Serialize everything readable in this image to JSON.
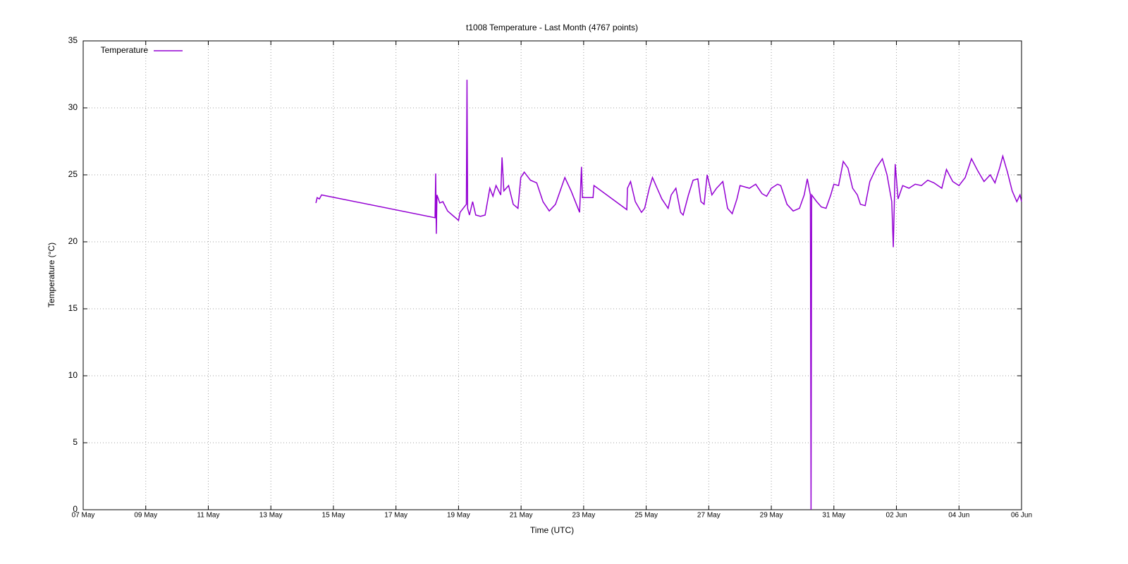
{
  "chart_data": {
    "type": "line",
    "title": "t1008 Temperature - Last Month (4767 points)",
    "x_label": "Time (UTC)",
    "y_label": "Temperature (°C)",
    "grid": true,
    "legend": "top-left",
    "xlim": [
      0,
      30
    ],
    "xticks": [
      {
        "value": 0,
        "label": "07 May"
      },
      {
        "value": 2,
        "label": "09 May"
      },
      {
        "value": 4,
        "label": "11 May"
      },
      {
        "value": 6,
        "label": "13 May"
      },
      {
        "value": 8,
        "label": "15 May"
      },
      {
        "value": 10,
        "label": "17 May"
      },
      {
        "value": 12,
        "label": "19 May"
      },
      {
        "value": 14,
        "label": "21 May"
      },
      {
        "value": 16,
        "label": "23 May"
      },
      {
        "value": 18,
        "label": "25 May"
      },
      {
        "value": 20,
        "label": "27 May"
      },
      {
        "value": 22,
        "label": "29 May"
      },
      {
        "value": 24,
        "label": "31 May"
      },
      {
        "value": 26,
        "label": "02 Jun"
      },
      {
        "value": 28,
        "label": "04 Jun"
      },
      {
        "value": 30,
        "label": "06 Jun"
      }
    ],
    "ylim": [
      0,
      35
    ],
    "yticks": [
      0,
      5,
      10,
      15,
      20,
      25,
      30,
      35
    ],
    "x": [
      7.44,
      7.48,
      7.55,
      7.62,
      11.25,
      11.27,
      11.29,
      11.31,
      11.4,
      11.5,
      11.65,
      11.8,
      12.0,
      12.05,
      12.25,
      12.27,
      12.29,
      12.35,
      12.45,
      12.55,
      12.7,
      12.85,
      13.0,
      13.1,
      13.2,
      13.35,
      13.39,
      13.45,
      13.6,
      13.75,
      13.9,
      13.99,
      14.1,
      14.3,
      14.5,
      14.7,
      14.9,
      15.1,
      15.4,
      15.6,
      15.87,
      15.93,
      15.96,
      16.0,
      16.3,
      16.33,
      17.38,
      17.4,
      17.5,
      17.65,
      17.85,
      17.95,
      18.1,
      18.2,
      18.35,
      18.5,
      18.7,
      18.8,
      18.95,
      19.1,
      19.18,
      19.35,
      19.5,
      19.65,
      19.75,
      19.85,
      19.95,
      20.1,
      20.25,
      20.45,
      20.6,
      20.75,
      20.9,
      21.0,
      21.3,
      21.5,
      21.7,
      21.85,
      22.0,
      22.2,
      22.3,
      22.5,
      22.7,
      22.9,
      23.05,
      23.15,
      23.25,
      23.27,
      23.29,
      23.45,
      23.6,
      23.75,
      23.9,
      24.0,
      24.15,
      24.3,
      24.45,
      24.6,
      24.75,
      24.85,
      25.0,
      25.15,
      25.35,
      25.55,
      25.7,
      25.85,
      25.9,
      25.96,
      26.05,
      26.2,
      26.4,
      26.6,
      26.8,
      27.0,
      27.2,
      27.45,
      27.6,
      27.8,
      28.0,
      28.2,
      28.4,
      28.6,
      28.8,
      29.0,
      29.15,
      29.3,
      29.4,
      29.55,
      29.7,
      29.85,
      29.95,
      30.0
    ],
    "series": [
      {
        "name": "Temperature",
        "color": "#9400d3",
        "values": [
          22.9,
          23.3,
          23.2,
          23.5,
          21.8,
          25.1,
          20.6,
          23.5,
          22.9,
          23.0,
          22.3,
          22.0,
          21.6,
          22.2,
          22.8,
          32.1,
          22.5,
          22.0,
          23.0,
          22.0,
          21.9,
          22.0,
          24.0,
          23.4,
          24.2,
          23.5,
          26.3,
          23.8,
          24.2,
          22.8,
          22.5,
          24.8,
          25.2,
          24.6,
          24.4,
          23.0,
          22.3,
          22.8,
          24.8,
          23.8,
          22.2,
          25.6,
          23.3,
          23.3,
          23.3,
          24.2,
          22.4,
          24.0,
          24.5,
          23.0,
          22.2,
          22.5,
          24.0,
          24.8,
          24.0,
          23.2,
          22.5,
          23.5,
          24.0,
          22.2,
          22.0,
          23.5,
          24.6,
          24.7,
          23.0,
          22.8,
          25.0,
          23.5,
          24.0,
          24.5,
          22.5,
          22.1,
          23.2,
          24.2,
          24.0,
          24.3,
          23.6,
          23.4,
          24.0,
          24.3,
          24.2,
          22.8,
          22.3,
          22.5,
          23.5,
          24.7,
          23.5,
          0,
          23.5,
          23.0,
          22.6,
          22.5,
          23.5,
          24.3,
          24.2,
          26.0,
          25.5,
          24.0,
          23.5,
          22.8,
          22.7,
          24.5,
          25.5,
          26.2,
          25.0,
          23.0,
          19.6,
          25.8,
          23.2,
          24.2,
          24.0,
          24.3,
          24.2,
          24.6,
          24.4,
          24.0,
          25.4,
          24.5,
          24.2,
          24.8,
          26.2,
          25.3,
          24.5,
          25.0,
          24.4,
          25.5,
          26.4,
          25.2,
          23.8,
          23.0,
          23.5,
          23.0
        ]
      }
    ]
  }
}
